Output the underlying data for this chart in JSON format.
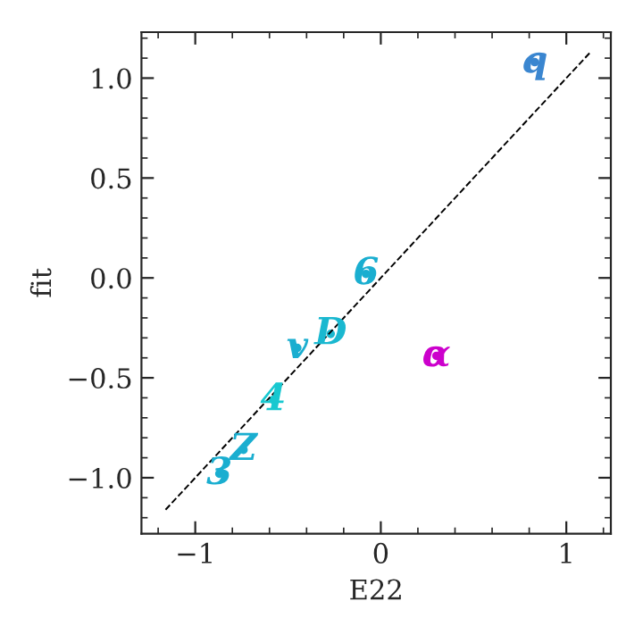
{
  "chart_data": {
    "type": "scatter",
    "xlabel": "E22",
    "ylabel": "fit",
    "xlim": [
      -1.29,
      1.24
    ],
    "ylim": [
      -1.28,
      1.23
    ],
    "xticks": [
      {
        "value": -1,
        "label": "−1"
      },
      0,
      1
    ],
    "yticks": [
      {
        "value": -1.0,
        "label": "−1.0"
      },
      {
        "value": -0.5,
        "label": "−0.5"
      },
      {
        "value": 0.0,
        "label": "0.0"
      },
      {
        "value": 0.5,
        "label": "0.5"
      },
      {
        "value": 1.0,
        "label": "1.0"
      }
    ],
    "grid": false,
    "legend": false,
    "series": [
      {
        "marker": "circle",
        "x": [
          0.83,
          -0.08,
          -0.27,
          -0.45,
          -0.58,
          -0.74,
          -0.87,
          0.3
        ],
        "values": [
          1.08,
          0.02,
          -0.28,
          -0.35,
          -0.61,
          -0.86,
          -0.98,
          -0.39
        ],
        "colors": [
          "#3a86d0",
          "#1aaed0",
          "#1ab8d0",
          "#1aaed0",
          "#18c8d0",
          "#1aaed0",
          "#1aaed0",
          "#cc00cc"
        ]
      },
      {
        "type": "line",
        "x": [
          -1.16,
          1.13
        ],
        "values": [
          -1.16,
          1.13
        ],
        "color": "#000000",
        "line_style": "dashed",
        "marker": "none"
      }
    ],
    "annotations": [
      {
        "text": "q",
        "x": 0.83,
        "y": 1.08
      },
      {
        "text": "6",
        "x": -0.08,
        "y": 0.02
      },
      {
        "text": "D",
        "x": -0.27,
        "y": -0.28
      },
      {
        "text": "v",
        "x": -0.45,
        "y": -0.35
      },
      {
        "text": "4",
        "x": -0.58,
        "y": -0.61
      },
      {
        "text": "Z",
        "x": -0.74,
        "y": -0.86
      },
      {
        "text": "3",
        "x": -0.87,
        "y": -0.98
      },
      {
        "text": "α",
        "x": 0.3,
        "y": -0.39
      }
    ]
  }
}
